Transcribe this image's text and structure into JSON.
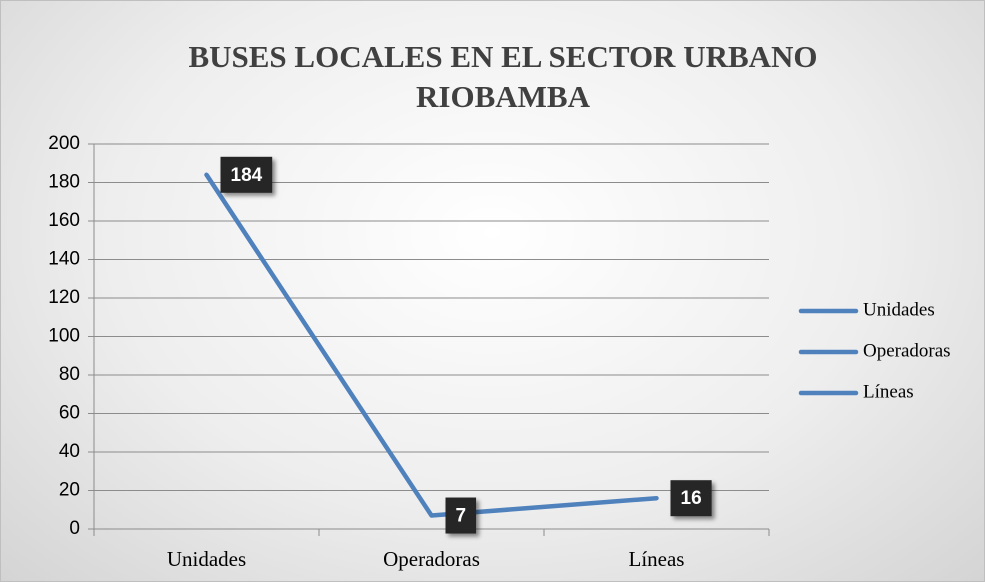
{
  "chart_data": {
    "type": "line",
    "title": "BUSES LOCALES EN EL SECTOR URBANO RIOBAMBA",
    "categories": [
      "Unidades",
      "Operadoras",
      "Líneas"
    ],
    "values": [
      184,
      7,
      16
    ],
    "color": "#4f81bd",
    "ylim": [
      0,
      200
    ],
    "yticks": [
      0,
      20,
      40,
      60,
      80,
      100,
      120,
      140,
      160,
      180,
      200
    ],
    "grid": true,
    "legend": "right"
  }
}
